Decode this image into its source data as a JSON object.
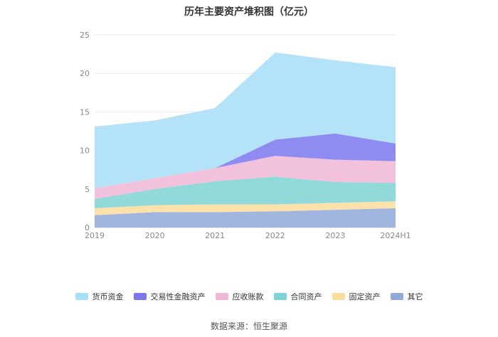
{
  "chart_data": {
    "type": "area",
    "stacked": true,
    "title": "历年主要资产堆积图（亿元）",
    "x": [
      "2019",
      "2020",
      "2021",
      "2022",
      "2023",
      "2024H1"
    ],
    "ylim": [
      0,
      25
    ],
    "yticks": [
      0,
      5,
      10,
      15,
      20,
      25
    ],
    "grid": true,
    "legend_position": "bottom",
    "series": [
      {
        "name": "其它",
        "color": "#8fa9d8",
        "values": [
          1.6,
          2.0,
          2.0,
          2.1,
          2.3,
          2.5
        ]
      },
      {
        "name": "固定资产",
        "color": "#fbdc9c",
        "values": [
          0.9,
          0.9,
          1.0,
          0.9,
          0.9,
          0.9
        ]
      },
      {
        "name": "合同资产",
        "color": "#7fd3d3",
        "values": [
          1.2,
          2.1,
          3.0,
          3.6,
          2.7,
          2.4
        ]
      },
      {
        "name": "应收账款",
        "color": "#f0b6d6",
        "values": [
          1.4,
          1.4,
          1.7,
          2.7,
          2.9,
          2.8
        ]
      },
      {
        "name": "交易性金融资产",
        "color": "#7b78ee",
        "values": [
          0.0,
          0.0,
          0.0,
          2.1,
          3.4,
          2.3
        ]
      },
      {
        "name": "货币资金",
        "color": "#a7def8",
        "values": [
          8.0,
          7.5,
          7.8,
          11.3,
          9.5,
          9.9
        ]
      }
    ],
    "legend_order": [
      "货币资金",
      "交易性金融资产",
      "应收账款",
      "合同资产",
      "固定资产",
      "其它"
    ]
  },
  "source": "数据来源：恒生聚源"
}
